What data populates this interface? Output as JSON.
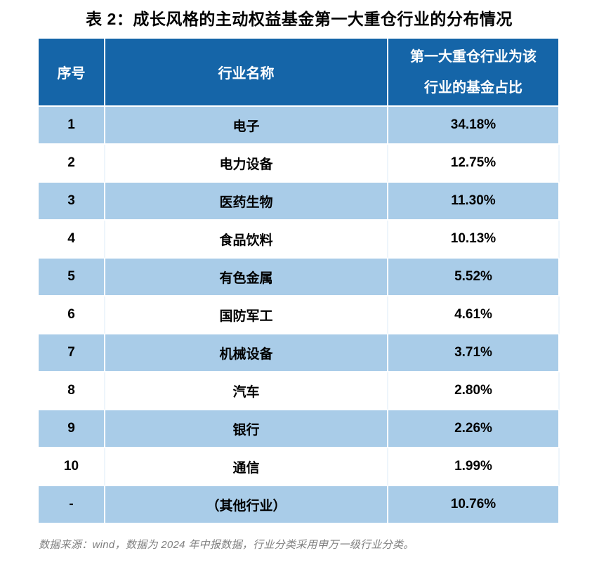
{
  "title": "表 2：成长风格的主动权益基金第一大重仓行业的分布情况",
  "table": {
    "headers": {
      "index": "序号",
      "industry": "行业名称",
      "share": "第一大重仓行业为该\n行业的基金占比"
    },
    "rows": [
      {
        "no": "1",
        "industry": "电子",
        "pct": "34.18%"
      },
      {
        "no": "2",
        "industry": "电力设备",
        "pct": "12.75%"
      },
      {
        "no": "3",
        "industry": "医药生物",
        "pct": "11.30%"
      },
      {
        "no": "4",
        "industry": "食品饮料",
        "pct": "10.13%"
      },
      {
        "no": "5",
        "industry": "有色金属",
        "pct": "5.52%"
      },
      {
        "no": "6",
        "industry": "国防军工",
        "pct": "4.61%"
      },
      {
        "no": "7",
        "industry": "机械设备",
        "pct": "3.71%"
      },
      {
        "no": "8",
        "industry": "汽车",
        "pct": "2.80%"
      },
      {
        "no": "9",
        "industry": "银行",
        "pct": "2.26%"
      },
      {
        "no": "10",
        "industry": "通信",
        "pct": "1.99%"
      },
      {
        "no": "-",
        "industry": "（其他行业）",
        "pct": "10.76%"
      }
    ]
  },
  "footnote": "数据来源：wind，数据为 2024 年中报数据，行业分类采用申万一级行业分类。",
  "colors": {
    "header_bg": "#1565A8",
    "row_alt_bg": "#A9CCE8",
    "footnote_color": "#7F7F7F"
  }
}
